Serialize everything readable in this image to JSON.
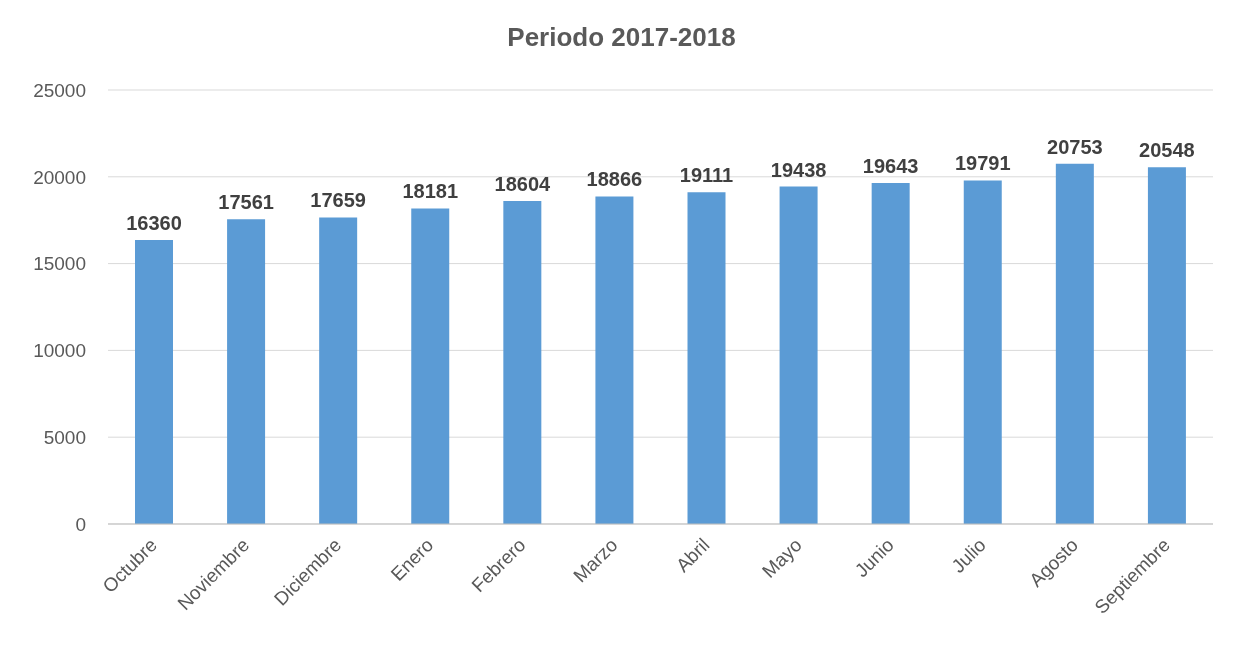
{
  "chart_data": {
    "type": "bar",
    "title": "Periodo 2017-2018",
    "categories": [
      "Octubre",
      "Noviembre",
      "Diciembre",
      "Enero",
      "Febrero",
      "Marzo",
      "Abril",
      "Mayo",
      "Junio",
      "Julio",
      "Agosto",
      "Septiembre"
    ],
    "values": [
      16360,
      17561,
      17659,
      18181,
      18604,
      18866,
      19111,
      19438,
      19643,
      19791,
      20753,
      20548
    ],
    "color": "#5b9bd5",
    "ylim": [
      0,
      25000
    ],
    "yticks": [
      0,
      5000,
      10000,
      15000,
      20000,
      25000
    ],
    "grid": "y",
    "data_labels": true
  }
}
